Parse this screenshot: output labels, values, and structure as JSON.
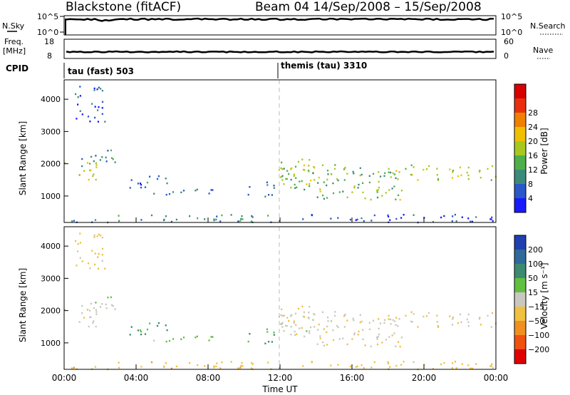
{
  "header": {
    "station": "Blackstone (fitACF)",
    "beam_and_dates": "Beam 04  14/Sep/2008 – 15/Sep/2008"
  },
  "top_panels": {
    "nsky_label": "N.Sky",
    "nsky_ticks": [
      "10^5",
      "10^0"
    ],
    "nsearch_label": "N.Search",
    "freq_label_1": "Freq.",
    "freq_label_2": "[MHz]",
    "freq_ticks": [
      "18",
      "8"
    ],
    "nave_label": "Nave",
    "nave_ticks": [
      "60",
      "0"
    ],
    "cpid_label": "CPID",
    "cpid_1": "tau (fast) 503",
    "cpid_2": "themis (tau) 3310"
  },
  "axes": {
    "xlabel": "Time UT",
    "ylabel": "Slant Range [km]",
    "xticks": [
      "00:00",
      "04:00",
      "08:00",
      "12:00",
      "16:00",
      "20:00",
      "00:00"
    ],
    "xlim_hours": [
      0,
      24
    ],
    "yticks": [
      "1000",
      "2000",
      "3000",
      "4000"
    ],
    "ylim_km": [
      180,
      4600
    ]
  },
  "power_colorbar": {
    "label": "Power [dB]",
    "ticks": [
      "4",
      "8",
      "12",
      "16",
      "20",
      "24",
      "28"
    ],
    "colors": [
      "#1a1aff",
      "#2a58c8",
      "#3c8a7a",
      "#4eb04a",
      "#a8c820",
      "#f0c000",
      "#f08000",
      "#e83010",
      "#d80000"
    ]
  },
  "velocity_colorbar": {
    "label": "Velocity [m s⁻¹]",
    "ticks": [
      "200",
      "100",
      "50",
      "15",
      "−15",
      "−50",
      "−100",
      "−200"
    ],
    "colors": [
      "#2040b0",
      "#2e6a9a",
      "#3c8a70",
      "#60c040",
      "#c8c8c0",
      "#f0c040",
      "#f09020",
      "#f05010",
      "#e00000"
    ]
  },
  "chart_data": {
    "type": "heatmap",
    "panels": [
      "power",
      "velocity"
    ],
    "x_unit": "hours UT",
    "y_unit": "km",
    "scatter_bands": [
      {
        "t0": 0.0,
        "t1": 1.9,
        "r0": 1500,
        "r1": 2100,
        "power_db": 20,
        "velocity_ms": -5
      },
      {
        "t0": 0.8,
        "t1": 2.8,
        "r0": 1950,
        "r1": 2500,
        "power_db": 10,
        "velocity_ms": 5
      },
      {
        "t0": 0.5,
        "t1": 2.3,
        "r0": 3300,
        "r1": 4450,
        "power_db": 6,
        "velocity_ms": -30
      },
      {
        "t0": 3.2,
        "t1": 5.7,
        "r0": 1250,
        "r1": 1650,
        "power_db": 8,
        "velocity_ms": 55
      },
      {
        "t0": 4.0,
        "t1": 8.6,
        "r0": 1050,
        "r1": 1250,
        "power_db": 6,
        "velocity_ms": 30
      },
      {
        "t0": 10.2,
        "t1": 11.7,
        "r0": 1000,
        "r1": 1500,
        "power_db": 8,
        "velocity_ms": 60
      },
      {
        "t0": 0.0,
        "t1": 12.0,
        "r0": 200,
        "r1": 450,
        "power_db": 9,
        "velocity_ms": -35
      },
      {
        "t0": 11.8,
        "t1": 14.2,
        "r0": 1350,
        "r1": 2200,
        "power_db": 18,
        "velocity_ms": 0
      },
      {
        "t0": 12.0,
        "t1": 18.5,
        "r0": 1200,
        "r1": 2000,
        "power_db": 14,
        "velocity_ms": -5
      },
      {
        "t0": 14.0,
        "t1": 19.0,
        "r0": 900,
        "r1": 1300,
        "power_db": 16,
        "velocity_ms": -10
      },
      {
        "t0": 18.0,
        "t1": 24.0,
        "r0": 1500,
        "r1": 2000,
        "power_db": 17,
        "velocity_ms": -20
      },
      {
        "t0": 12.0,
        "t1": 24.0,
        "r0": 200,
        "r1": 450,
        "power_db": 5,
        "velocity_ms": -30
      }
    ]
  }
}
